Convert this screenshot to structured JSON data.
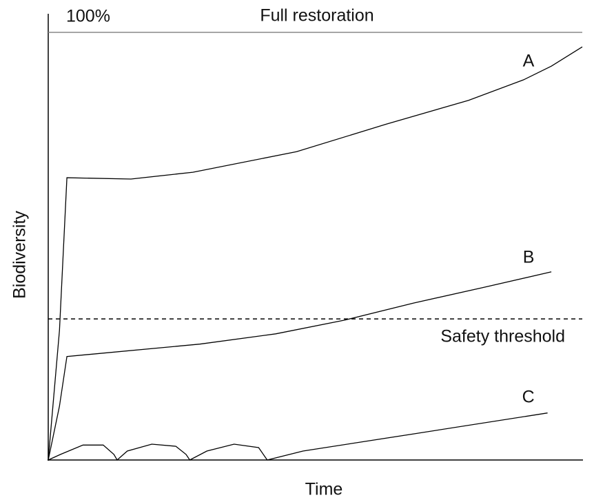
{
  "chart_data": {
    "type": "line",
    "x_label": "Time",
    "y_label": "Biodiversity",
    "xlim": [
      0,
      100
    ],
    "ylim": [
      0,
      100
    ],
    "yticks": [
      {
        "value": 100,
        "label": "100%"
      }
    ],
    "reference_lines": [
      {
        "label": "Full restoration",
        "value": 100,
        "style": "solid"
      },
      {
        "label": "Safety threshold",
        "value": 33,
        "style": "dashed"
      }
    ],
    "series": [
      {
        "name": "A",
        "color": "#000000",
        "x": [
          0,
          2.1,
          3.5,
          15.5,
          27.1,
          46.5,
          63.2,
          78.7,
          89,
          94.2,
          100
        ],
        "values": [
          0,
          30.3,
          66,
          65.7,
          67.3,
          72.1,
          78.5,
          84.1,
          88.9,
          92.1,
          96.6
        ]
      },
      {
        "name": "B",
        "color": "#000000",
        "x": [
          0,
          2.1,
          3.5,
          28.4,
          42.6,
          55.5,
          68.4,
          81.3,
          94.2
        ],
        "values": [
          0,
          12.6,
          24.2,
          27.1,
          29.5,
          32.7,
          36.7,
          40.3,
          44
        ]
      },
      {
        "name": "C",
        "color": "#000000",
        "x": [
          0,
          2.3,
          6.5,
          10.3,
          12.3,
          12.9,
          14.8,
          19.4,
          23.9,
          25.8,
          26.5,
          29.7,
          34.8,
          39.4,
          41,
          47.7,
          68.4,
          93.5
        ],
        "values": [
          0,
          1.3,
          3.5,
          3.5,
          1.3,
          0,
          2.1,
          3.7,
          3.2,
          1.3,
          0,
          2.1,
          3.7,
          2.9,
          0,
          2.1,
          6.1,
          11
        ]
      }
    ]
  }
}
